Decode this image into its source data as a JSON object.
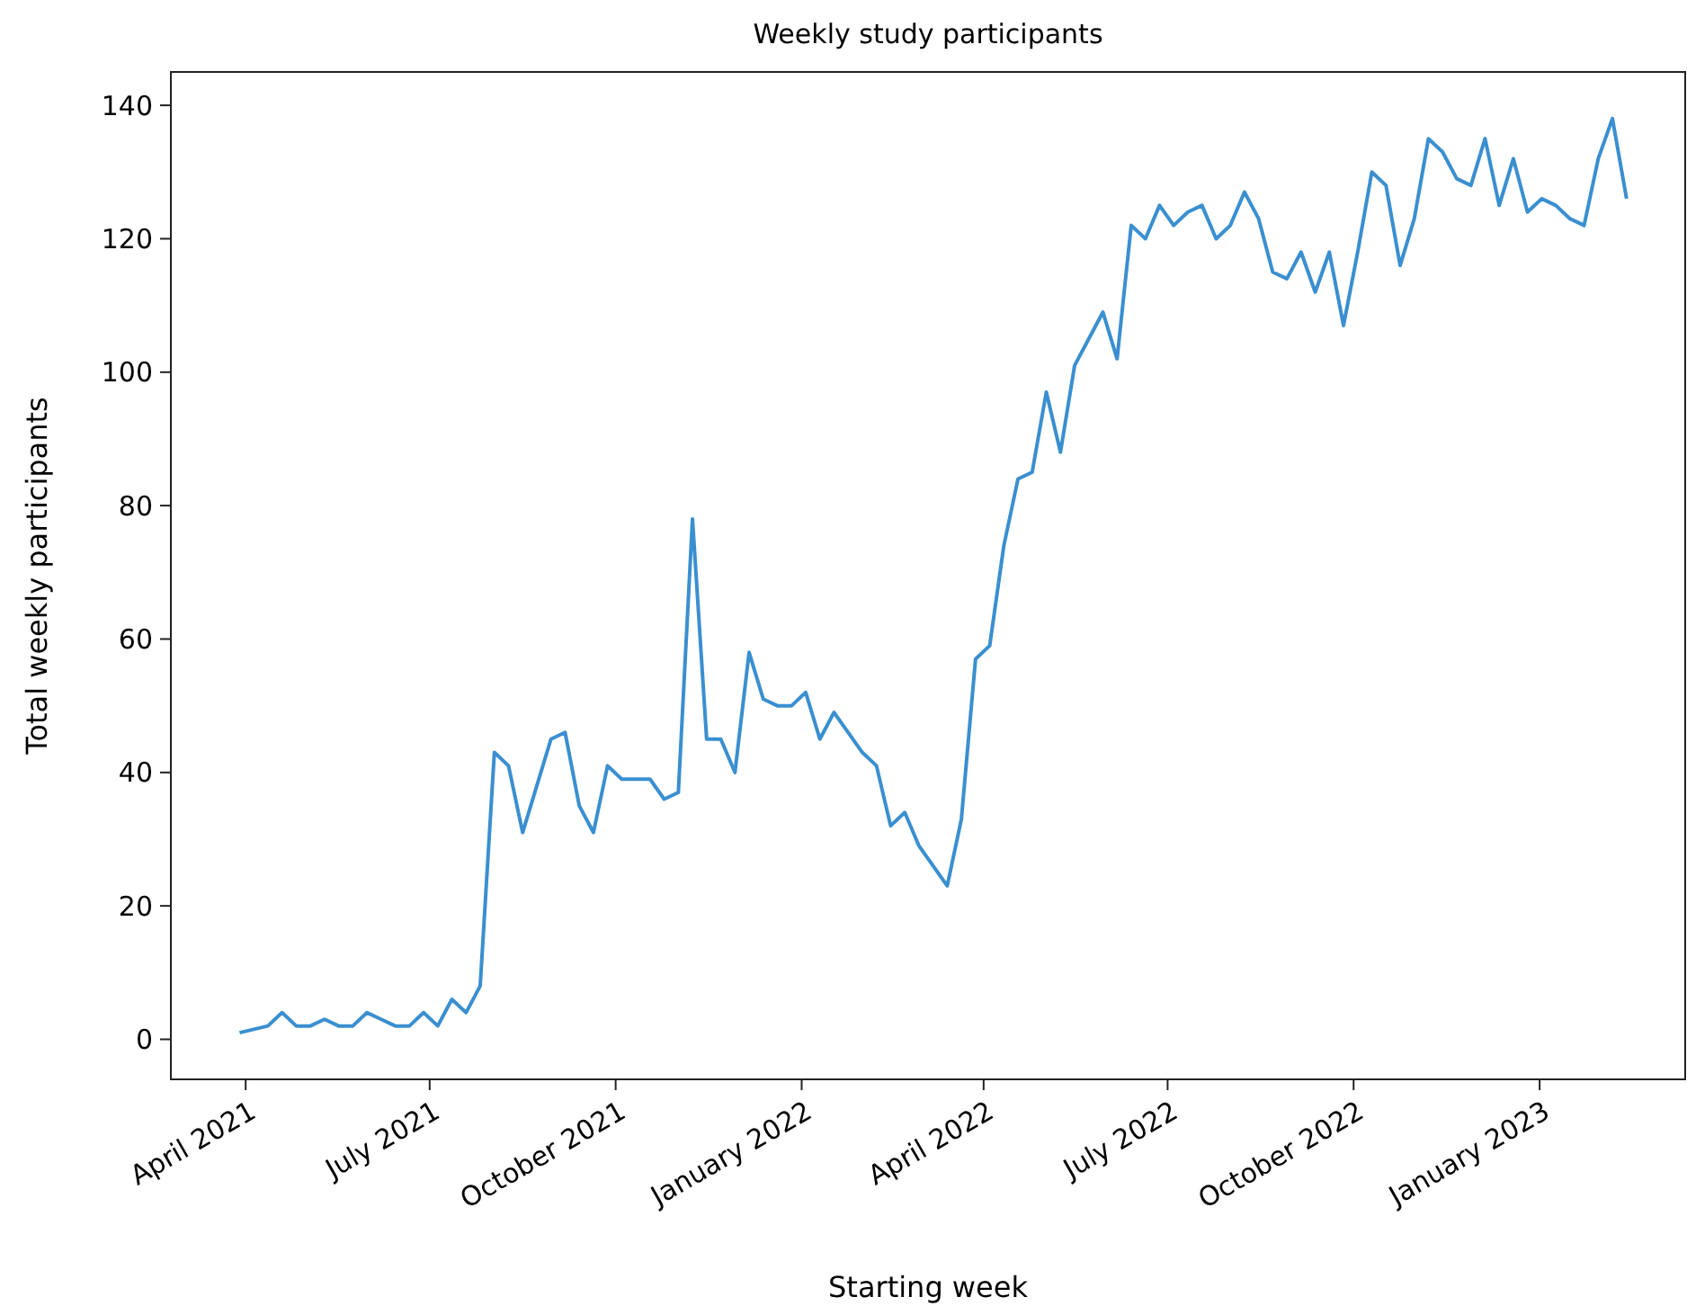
{
  "chart_data": {
    "type": "line",
    "title": "Weekly study participants",
    "xlabel": "Starting week",
    "ylabel": "Total weekly participants",
    "x": [
      "2021-03-29",
      "2021-04-05",
      "2021-04-12",
      "2021-04-19",
      "2021-04-26",
      "2021-05-03",
      "2021-05-10",
      "2021-05-17",
      "2021-05-24",
      "2021-05-31",
      "2021-06-07",
      "2021-06-14",
      "2021-06-21",
      "2021-06-28",
      "2021-07-05",
      "2021-07-12",
      "2021-07-19",
      "2021-07-26",
      "2021-08-02",
      "2021-08-09",
      "2021-08-16",
      "2021-08-23",
      "2021-08-30",
      "2021-09-06",
      "2021-09-13",
      "2021-09-20",
      "2021-09-27",
      "2021-10-04",
      "2021-10-11",
      "2021-10-18",
      "2021-10-25",
      "2021-11-01",
      "2021-11-08",
      "2021-11-15",
      "2021-11-22",
      "2021-11-29",
      "2021-12-06",
      "2021-12-13",
      "2021-12-20",
      "2021-12-27",
      "2022-01-03",
      "2022-01-10",
      "2022-01-17",
      "2022-01-24",
      "2022-01-31",
      "2022-02-07",
      "2022-02-14",
      "2022-02-21",
      "2022-02-28",
      "2022-03-07",
      "2022-03-14",
      "2022-03-21",
      "2022-03-28",
      "2022-04-04",
      "2022-04-11",
      "2022-04-18",
      "2022-04-25",
      "2022-05-02",
      "2022-05-09",
      "2022-05-16",
      "2022-05-23",
      "2022-05-30",
      "2022-06-06",
      "2022-06-13",
      "2022-06-20",
      "2022-06-27",
      "2022-07-04",
      "2022-07-11",
      "2022-07-18",
      "2022-07-25",
      "2022-08-01",
      "2022-08-08",
      "2022-08-15",
      "2022-08-22",
      "2022-08-29",
      "2022-09-05",
      "2022-09-12",
      "2022-09-19",
      "2022-09-26",
      "2022-10-03",
      "2022-10-10",
      "2022-10-17",
      "2022-10-24",
      "2022-10-31",
      "2022-11-07",
      "2022-11-14",
      "2022-11-21",
      "2022-11-28",
      "2022-12-05",
      "2022-12-12",
      "2022-12-19",
      "2022-12-26",
      "2023-01-02",
      "2023-01-09",
      "2023-01-16",
      "2023-01-23",
      "2023-01-30",
      "2023-02-06",
      "2023-02-13"
    ],
    "series": [
      {
        "color": "#3a8fd0",
        "values": [
          1,
          1.5,
          2,
          4,
          2,
          2,
          3,
          2,
          2,
          4,
          3,
          2,
          2,
          4,
          2,
          6,
          4,
          8,
          43,
          41,
          31,
          38,
          45,
          46,
          35,
          31,
          41,
          39,
          39,
          39,
          36,
          37,
          78,
          45,
          45,
          40,
          58,
          51,
          50,
          50,
          52,
          45,
          49,
          46,
          43,
          41,
          32,
          34,
          29,
          26,
          23,
          33,
          57,
          59,
          74,
          84,
          85,
          97,
          88,
          101,
          105,
          109,
          102,
          122,
          120,
          125,
          122,
          124,
          125,
          120,
          122,
          127,
          123,
          115,
          114,
          118,
          112,
          118,
          107,
          118,
          130,
          128,
          116,
          123,
          135,
          133,
          129,
          128,
          135,
          125,
          132,
          124,
          126,
          125,
          123,
          122,
          132,
          138,
          126
        ]
      }
    ],
    "xlim": [
      "2021-02-23",
      "2023-03-14"
    ],
    "xticks": [
      {
        "value": "2021-04-01",
        "label": "April 2021"
      },
      {
        "value": "2021-07-01",
        "label": "July 2021"
      },
      {
        "value": "2021-10-01",
        "label": "October 2021"
      },
      {
        "value": "2022-01-01",
        "label": "January 2022"
      },
      {
        "value": "2022-04-01",
        "label": "April 2022"
      },
      {
        "value": "2022-07-01",
        "label": "July 2022"
      },
      {
        "value": "2022-10-01",
        "label": "October 2022"
      },
      {
        "value": "2023-01-01",
        "label": "January 2023"
      }
    ],
    "ylim": [
      -6,
      145
    ],
    "yticks": [
      0,
      20,
      40,
      60,
      80,
      100,
      120,
      140
    ],
    "grid": false,
    "marker": "none",
    "line_style": "solid"
  }
}
